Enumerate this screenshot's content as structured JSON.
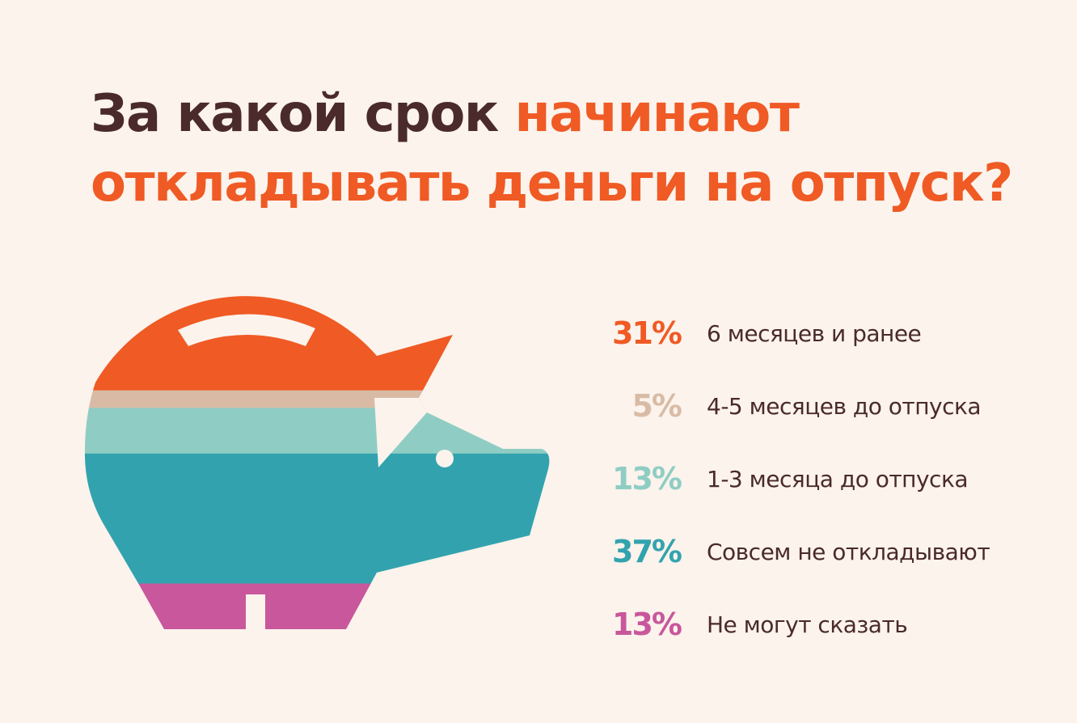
{
  "title": {
    "part1": "За какой срок ",
    "part2_line1": "начинают",
    "part2_line2": "откладывать деньги на отпуск?"
  },
  "colors": {
    "dark_text": "#4a2a2a",
    "accent": "#f05a24"
  },
  "chart_data": {
    "type": "bar",
    "title": "За какой срок начинают откладывать деньги на отпуск?",
    "categories": [
      "6 месяцев и ранее",
      "4-5 месяцев до отпуска",
      "1-3 месяца до отпуска",
      "Совсем не откладывают",
      "Не могут сказать"
    ],
    "values": [
      31,
      5,
      13,
      37,
      13
    ],
    "value_labels": [
      "31%",
      "5%",
      "13%",
      "37%",
      "13%"
    ],
    "unit": "%",
    "colors": [
      "#f05a24",
      "#d9bba5",
      "#8fcdc4",
      "#32a3ae",
      "#c8579b"
    ]
  }
}
